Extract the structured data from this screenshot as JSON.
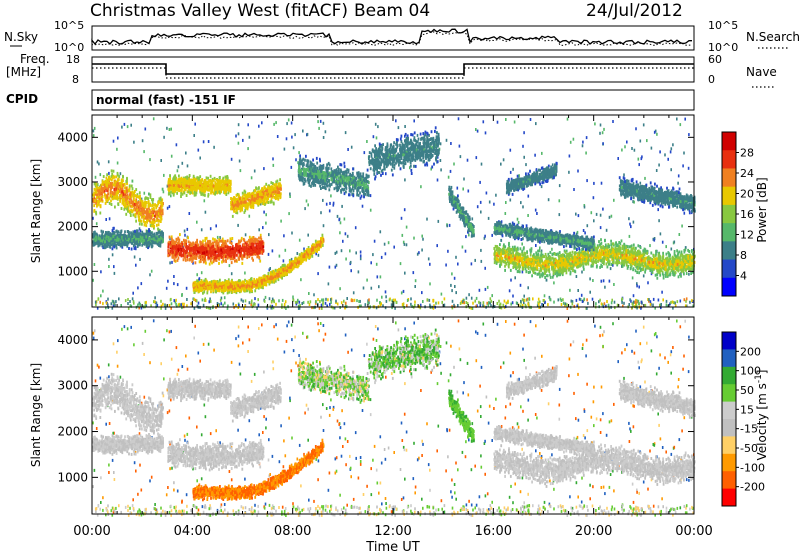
{
  "header": {
    "station": "Christmas Valley West (fitACF)",
    "beam": "Beam 04",
    "date": "24/Jul/2012"
  },
  "top_panel": {
    "left_label": "N.Sky",
    "left_ticks": [
      "10^5",
      "10^0"
    ],
    "right_label": "N.Search",
    "right_ticks": [
      "10^5",
      "10^0"
    ]
  },
  "freq_panel": {
    "left_label_line1": "Freq.",
    "left_label_line2": "[MHz]",
    "left_ticks": [
      "18",
      "8"
    ],
    "right_label": "Nave",
    "right_ticks": [
      "60",
      "0"
    ]
  },
  "cpid": {
    "label": "CPID",
    "mode": "normal (fast) -151 IF"
  },
  "colors": {
    "power_scale": [
      "#0000ff",
      "#2448c8",
      "#3c7f88",
      "#56b86a",
      "#88c840",
      "#e8c800",
      "#f08020",
      "#e83010",
      "#d00000"
    ],
    "velocity_scale": [
      "#ff0000",
      "#ff6000",
      "#ff9a00",
      "#ffd066",
      "#c0c0c0",
      "#cccccc",
      "#66cc33",
      "#33aa33",
      "#2060c0",
      "#0000c8"
    ]
  },
  "chart_data": [
    {
      "type": "heatmap",
      "title": "Power",
      "ylabel": "Slant Range [km]",
      "xlabel": "Time UT",
      "x_ticks": [
        "00:00",
        "04:00",
        "08:00",
        "12:00",
        "16:00",
        "20:00",
        "00:00"
      ],
      "y_ticks": [
        "1000",
        "2000",
        "3000",
        "4000"
      ],
      "ylim": [
        200,
        4500
      ],
      "colorbar": {
        "label": "Power [dB]",
        "ticks": [
          "28",
          "24",
          "20",
          "16",
          "12",
          "8",
          "4"
        ],
        "range": [
          0,
          30
        ]
      },
      "features": [
        {
          "t_start": 0.0,
          "t_end": 2.8,
          "range_start": 2100,
          "range_end": 3100,
          "level": 20
        },
        {
          "t_start": 3.0,
          "t_end": 6.5,
          "range_start": 1300,
          "range_end": 1800,
          "level": 26
        },
        {
          "t_start": 4.0,
          "t_end": 9.0,
          "range_start": 600,
          "range_end": 1700,
          "level": 18
        },
        {
          "t_start": 16.0,
          "t_end": 24.0,
          "range_start": 900,
          "range_end": 1600,
          "level": 14
        }
      ]
    },
    {
      "type": "heatmap",
      "title": "Velocity",
      "ylabel": "Slant Range [km]",
      "xlabel": "Time UT",
      "x_ticks": [
        "00:00",
        "04:00",
        "08:00",
        "12:00",
        "16:00",
        "20:00",
        "00:00"
      ],
      "y_ticks": [
        "1000",
        "2000",
        "3000",
        "4000"
      ],
      "ylim": [
        200,
        4500
      ],
      "colorbar": {
        "label": "Velocity [m s^-1]",
        "ticks": [
          "200",
          "100",
          "50",
          "15",
          "-15",
          "-50",
          "-100",
          "-200"
        ],
        "range": [
          -250,
          250
        ]
      },
      "features": [
        {
          "t_start": 0.0,
          "t_end": 2.8,
          "range_start": 2100,
          "range_end": 3100,
          "level": 0
        },
        {
          "t_start": 4.0,
          "t_end": 9.0,
          "range_start": 600,
          "range_end": 1600,
          "level": -80
        },
        {
          "t_start": 16.0,
          "t_end": 24.0,
          "range_start": 900,
          "range_end": 1600,
          "level": 0
        }
      ]
    }
  ]
}
